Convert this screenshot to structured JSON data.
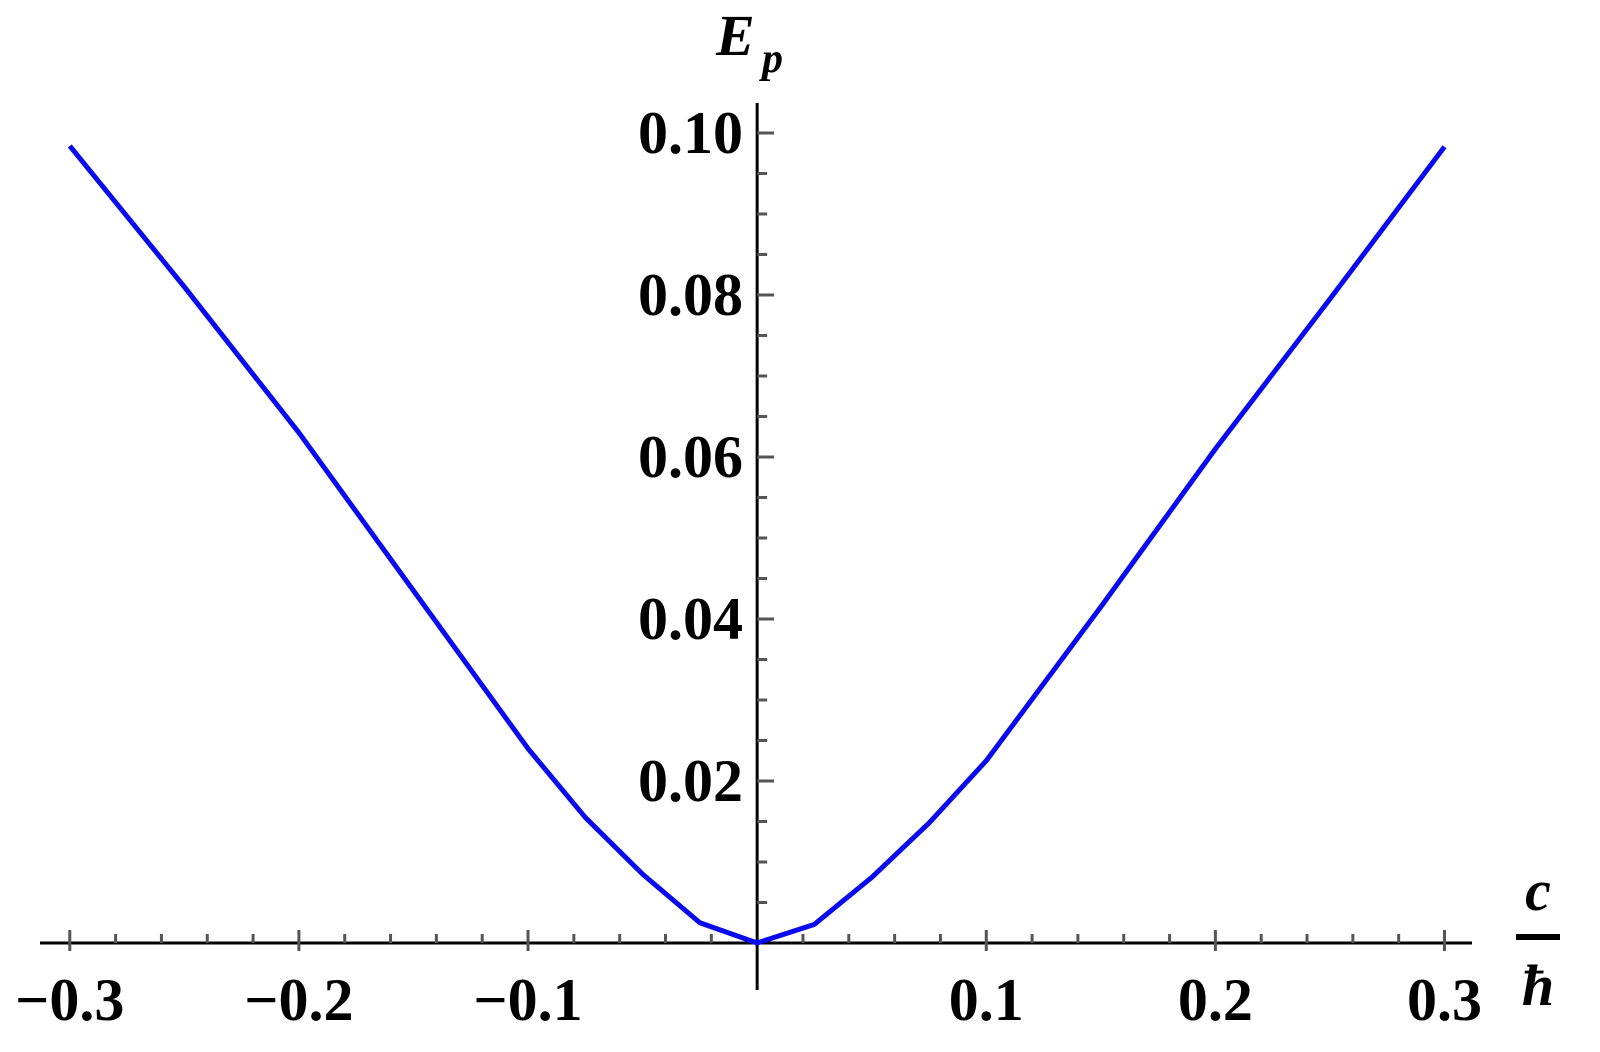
{
  "chart_data": {
    "type": "line",
    "y_label": {
      "main": "E",
      "sub": "p"
    },
    "x_label": {
      "numerator": "c",
      "denominator": "ħ"
    },
    "series": [
      {
        "color": "#0a0aee",
        "x": [
          -0.3,
          -0.25,
          -0.2,
          -0.15,
          -0.1,
          -0.075,
          -0.05,
          -0.025,
          0,
          0.025,
          0.05,
          0.075,
          0.1,
          0.15,
          0.2,
          0.25,
          0.3
        ],
        "values": [
          0.0984,
          0.081,
          0.063,
          0.0435,
          0.024,
          0.0155,
          0.0085,
          0.0025,
          0,
          0.0023,
          0.0081,
          0.0148,
          0.0225,
          0.0415,
          0.061,
          0.0795,
          0.0983
        ]
      }
    ],
    "xlim": [
      -0.313,
      0.312
    ],
    "ylim": [
      0,
      0.1037
    ],
    "xticks": [
      {
        "value": -0.3,
        "label": "−0.3"
      },
      {
        "value": -0.2,
        "label": "−0.2"
      },
      {
        "value": -0.1,
        "label": "−0.1"
      },
      0.1,
      0.2,
      0.3
    ],
    "yticks": [
      0.02,
      0.04,
      0.06,
      0.08,
      {
        "value": 0.1,
        "label": "0.10"
      }
    ],
    "x_minor_ticks": [
      -0.28,
      -0.26,
      -0.24,
      -0.22,
      -0.18,
      -0.16,
      -0.14,
      -0.12,
      -0.08,
      -0.06,
      -0.04,
      -0.02,
      0.02,
      0.04,
      0.06,
      0.08,
      0.12,
      0.14,
      0.16,
      0.18,
      0.22,
      0.24,
      0.26,
      0.28
    ],
    "y_minor_ticks": [
      0.005,
      0.01,
      0.015,
      0.025,
      0.03,
      0.035,
      0.045,
      0.05,
      0.055,
      0.065,
      0.07,
      0.075,
      0.085,
      0.09,
      0.095
    ]
  }
}
